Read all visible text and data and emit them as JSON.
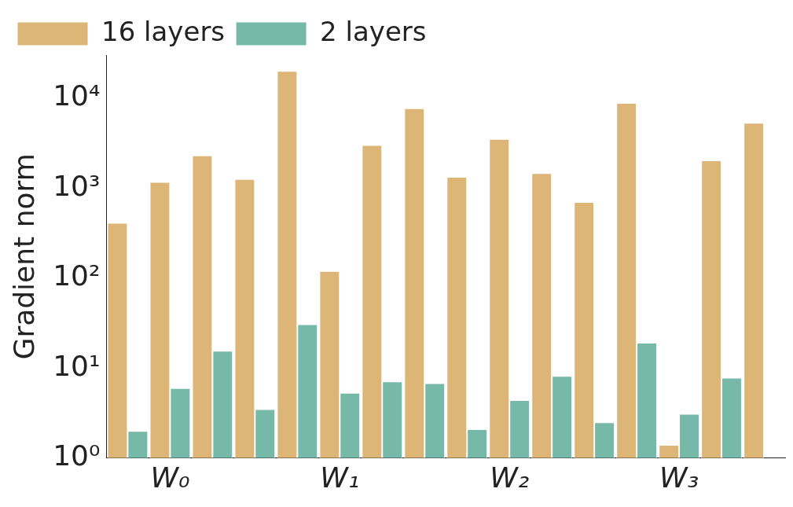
{
  "chart_data": {
    "type": "bar",
    "ylabel": "Gradient norm",
    "log": "y",
    "legend": "top left",
    "grid": false,
    "categories": [
      null,
      "W₀",
      null,
      null,
      null,
      "W₁",
      null,
      null,
      null,
      "W₂",
      null,
      null,
      null,
      "W₃",
      null,
      null
    ],
    "ylim": [
      1,
      30000
    ],
    "yticks": [
      {
        "value": 1,
        "label": "10⁰"
      },
      {
        "value": 10,
        "label": "10¹"
      },
      {
        "value": 100,
        "label": "10²"
      },
      {
        "value": 1000,
        "label": "10³"
      },
      {
        "value": 10000,
        "label": "10⁴"
      }
    ],
    "series": [
      {
        "name": "16 layers",
        "color": "#ddb677",
        "values": [
          410,
          1170,
          2300,
          1260,
          20000,
          120,
          3000,
          7700,
          1330,
          3500,
          1460,
          700,
          8800,
          1.4,
          2030,
          5300
        ]
      },
      {
        "name": "2 layers",
        "color": "#76b9a8",
        "values": [
          2.0,
          6.0,
          15.6,
          3.5,
          30.7,
          5.3,
          7.1,
          6.8,
          2.1,
          4.4,
          8.2,
          2.5,
          19.1,
          3.1,
          7.8,
          null
        ]
      }
    ]
  }
}
